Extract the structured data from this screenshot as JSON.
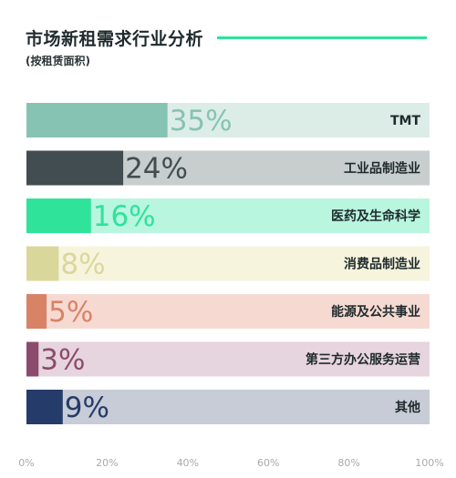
{
  "title": "市场新租需求行业分析",
  "subtitle": "(按租赁面积)",
  "accent_color": "#2fe39a",
  "chart_data": {
    "type": "bar",
    "orientation": "horizontal",
    "title": "市场新租需求行业分析",
    "subtitle": "(按租赁面积)",
    "categories": [
      "TMT",
      "工业品制造业",
      "医药及生命科学",
      "消费品制造业",
      "能源及公共事业",
      "第三方办公服务运营",
      "其他"
    ],
    "values": [
      35,
      24,
      16,
      8,
      5,
      3,
      9
    ],
    "value_labels": [
      "35%",
      "24%",
      "16%",
      "8%",
      "5%",
      "3%",
      "9%"
    ],
    "bar_colors": [
      "#86c3b3",
      "#414d50",
      "#2fe39a",
      "#dad79b",
      "#d98366",
      "#8c4b6d",
      "#253b69"
    ],
    "track_colors": [
      "#dcede8",
      "#c8cdcd",
      "#b8f6df",
      "#f6f4dd",
      "#f6dad2",
      "#e6d4de",
      "#c7ccd6"
    ],
    "value_label_colors": [
      "#86c3b3",
      "#414d50",
      "#2fe39a",
      "#dad79b",
      "#d98366",
      "#8c4b6d",
      "#253b69"
    ],
    "xlim": [
      0,
      100
    ],
    "x_ticks": [
      "0%",
      "20%",
      "40%",
      "60%",
      "80%",
      "100%"
    ],
    "x_tick_values": [
      0,
      20,
      40,
      60,
      80,
      100
    ],
    "grid": false
  }
}
